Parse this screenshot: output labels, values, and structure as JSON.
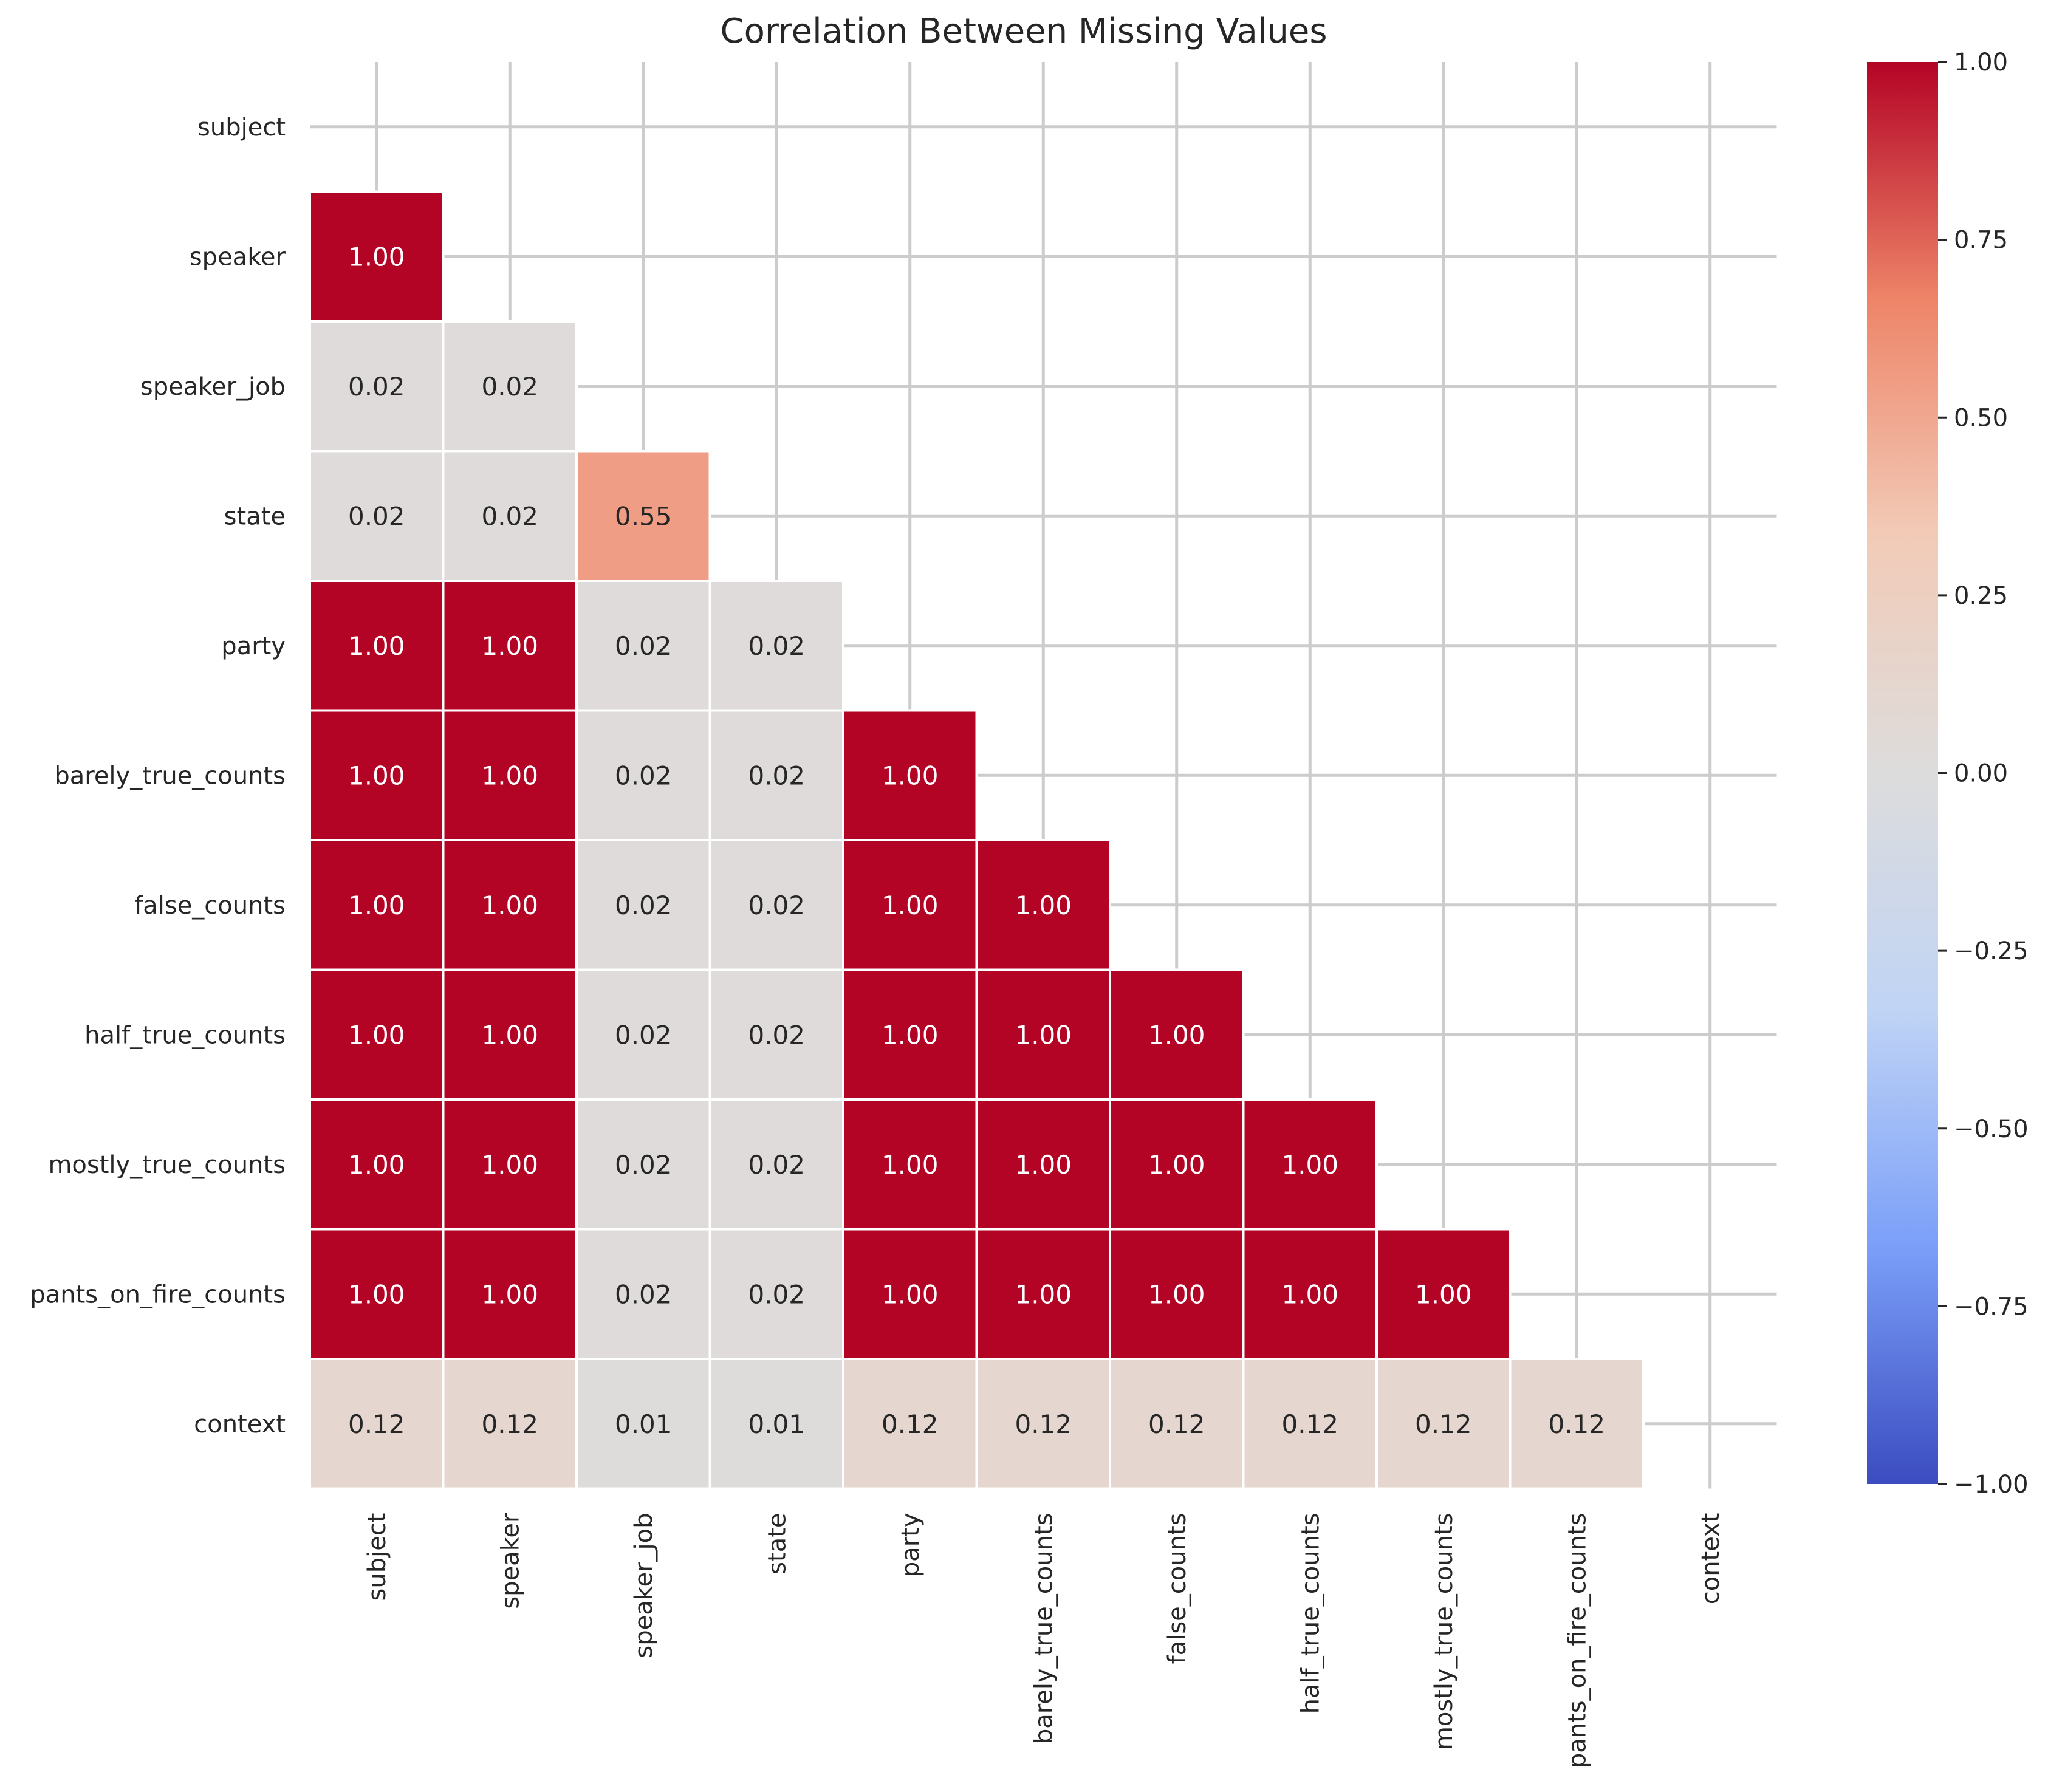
{
  "chart_data": {
    "type": "heatmap",
    "title": "Correlation Between Missing Values",
    "xlabel": "",
    "ylabel": "",
    "labels": [
      "subject",
      "speaker",
      "speaker_job",
      "state",
      "party",
      "barely_true_counts",
      "false_counts",
      "half_true_counts",
      "mostly_true_counts",
      "pants_on_fire_counts",
      "context"
    ],
    "mask": "upper triangle including diagonal",
    "values": [
      [
        null,
        null,
        null,
        null,
        null,
        null,
        null,
        null,
        null,
        null,
        null
      ],
      [
        1.0,
        null,
        null,
        null,
        null,
        null,
        null,
        null,
        null,
        null,
        null
      ],
      [
        0.02,
        0.02,
        null,
        null,
        null,
        null,
        null,
        null,
        null,
        null,
        null
      ],
      [
        0.02,
        0.02,
        0.55,
        null,
        null,
        null,
        null,
        null,
        null,
        null,
        null
      ],
      [
        1.0,
        1.0,
        0.02,
        0.02,
        null,
        null,
        null,
        null,
        null,
        null,
        null
      ],
      [
        1.0,
        1.0,
        0.02,
        0.02,
        1.0,
        null,
        null,
        null,
        null,
        null,
        null
      ],
      [
        1.0,
        1.0,
        0.02,
        0.02,
        1.0,
        1.0,
        null,
        null,
        null,
        null,
        null
      ],
      [
        1.0,
        1.0,
        0.02,
        0.02,
        1.0,
        1.0,
        1.0,
        null,
        null,
        null,
        null
      ],
      [
        1.0,
        1.0,
        0.02,
        0.02,
        1.0,
        1.0,
        1.0,
        1.0,
        null,
        null,
        null
      ],
      [
        1.0,
        1.0,
        0.02,
        0.02,
        1.0,
        1.0,
        1.0,
        1.0,
        1.0,
        null,
        null
      ],
      [
        0.12,
        0.12,
        0.01,
        0.01,
        0.12,
        0.12,
        0.12,
        0.12,
        0.12,
        0.12,
        null
      ]
    ],
    "annotation_format": "0.00",
    "colormap": "coolwarm",
    "vmin": -1.0,
    "vmax": 1.0,
    "colorbar_ticks": [
      1.0,
      0.75,
      0.5,
      0.25,
      0.0,
      -0.25,
      -0.5,
      -0.75,
      -1.0
    ],
    "colorbar_tick_labels": [
      "1.00",
      "0.75",
      "0.50",
      "0.25",
      "0.00",
      "−0.25",
      "−0.50",
      "−0.75",
      "−1.00"
    ],
    "grid": true,
    "colors": {
      "grid": "#cccccc",
      "text_dark": "#262626",
      "text_light": "#ffffff",
      "cmap_stops": [
        "#3b4cc0",
        "#7b9ff9",
        "#c0d4f5",
        "#dddcdc",
        "#f2cbb7",
        "#ee8468",
        "#b40426"
      ]
    }
  }
}
